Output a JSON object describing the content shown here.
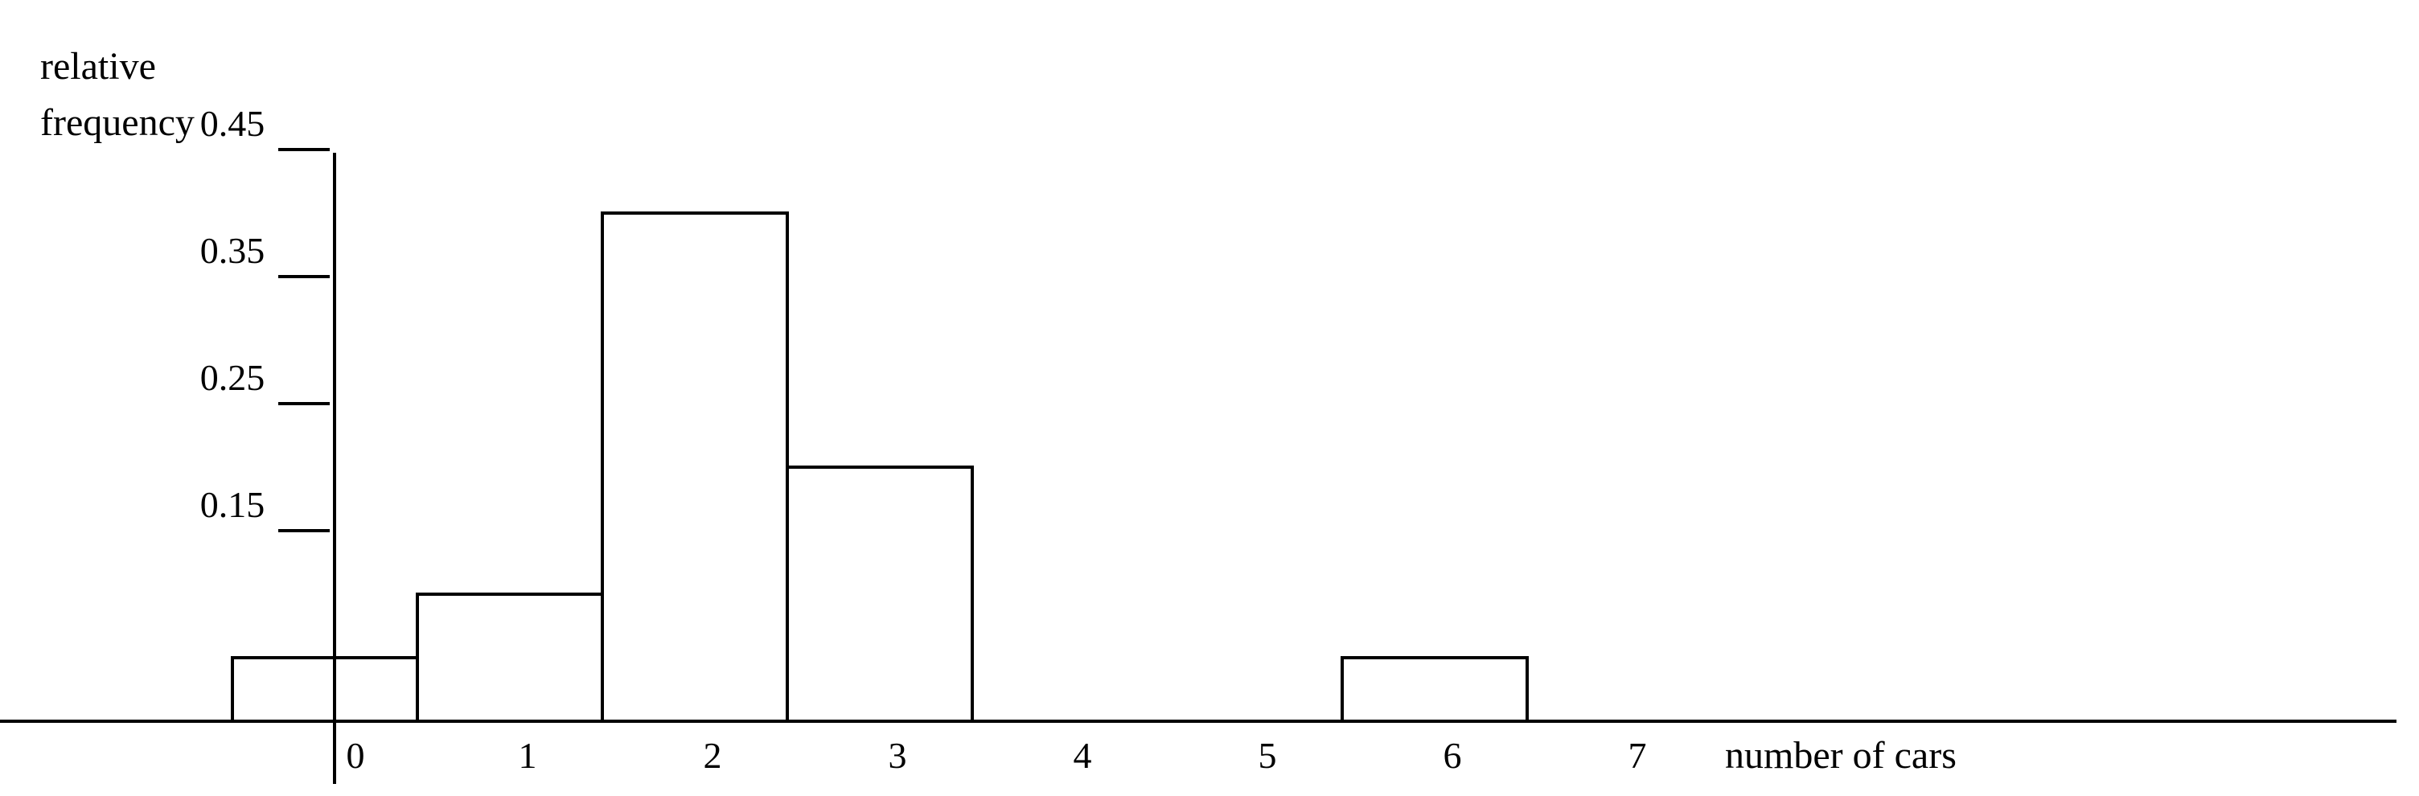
{
  "chart_data": {
    "type": "bar",
    "ylabel_lines": [
      "relative",
      "frequency"
    ],
    "xlabel": "number of cars",
    "categories": [
      "0",
      "1",
      "2",
      "3",
      "4",
      "5",
      "6",
      "7"
    ],
    "values": [
      0.05,
      0.1,
      0.4,
      0.2,
      0,
      0,
      0.05,
      0
    ],
    "yticks": [
      "0.45",
      "0.35",
      "0.25",
      "0.15"
    ],
    "ytick_values": [
      0.45,
      0.35,
      0.25,
      0.15
    ],
    "ylim": [
      0,
      0.45
    ],
    "grid": false,
    "bar_fill": "#ffffff",
    "bar_stroke": "#000000"
  }
}
